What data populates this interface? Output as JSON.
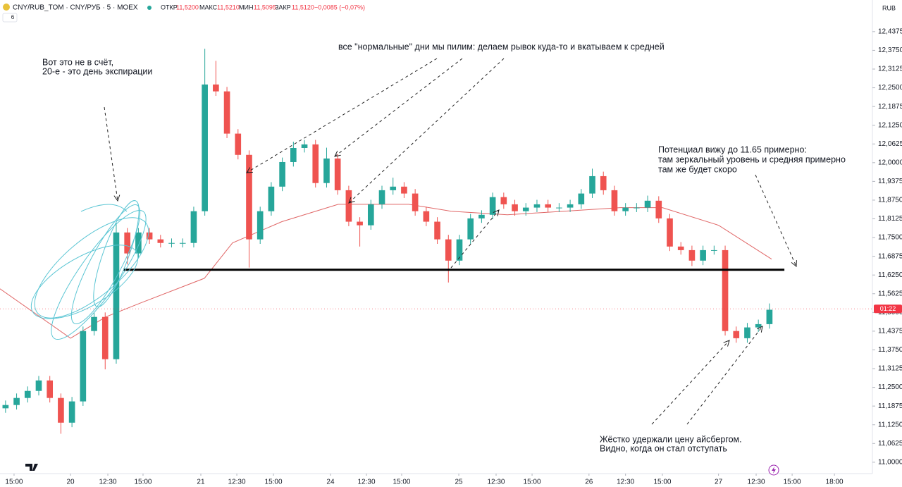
{
  "chart_data": {
    "type": "candlestick",
    "title": "CNY/RUB_TOM · CNY/РУБ · 5 · MOEX",
    "indicator_count": "6",
    "currency": "RUB",
    "legend_values": [
      {
        "label": "ОТКР",
        "value": "11,5200"
      },
      {
        "label": "МАКС",
        "value": "11,5210"
      },
      {
        "label": "МИН",
        "value": "11,5095"
      },
      {
        "label": "ЗАКР",
        "value": "11,5120"
      }
    ],
    "change": "−0,0085 (−0,07%)",
    "up_color": "#26a69a",
    "down_color": "#ef5350",
    "grid": false,
    "open": [
      11.18,
      11.191,
      11.2145,
      11.238,
      11.273,
      11.2145,
      11.132,
      11.203,
      11.438,
      11.485,
      11.344,
      11.767,
      11.697,
      11.767,
      11.744,
      11.732,
      11.732,
      11.732,
      11.838,
      12.261,
      12.238,
      12.097,
      12.026,
      11.744,
      11.838,
      11.92,
      12.002,
      12.049,
      12.061,
      11.932,
      12.014,
      11.908,
      11.803,
      11.791,
      11.861,
      11.908,
      11.92,
      11.897,
      11.838,
      11.803,
      11.744,
      11.673,
      11.744,
      11.814,
      11.826,
      11.885,
      11.861,
      11.838,
      11.85,
      11.861,
      11.85,
      11.85,
      11.861,
      11.897,
      11.955,
      11.908,
      11.838,
      11.85,
      11.85,
      11.873,
      11.814,
      11.72,
      11.708,
      11.673,
      11.708,
      11.708,
      11.438,
      11.414,
      11.45,
      11.461
    ],
    "high": [
      11.206,
      11.2295,
      11.253,
      11.288,
      11.288,
      11.2295,
      11.218,
      11.453,
      11.5,
      11.5,
      11.8,
      11.782,
      11.782,
      11.782,
      11.759,
      11.747,
      11.747,
      11.853,
      12.38,
      12.34,
      12.253,
      12.112,
      12.041,
      11.853,
      11.935,
      12.017,
      12.07,
      12.076,
      12.076,
      12.05,
      12.029,
      11.923,
      11.818,
      11.876,
      11.923,
      11.95,
      11.935,
      11.912,
      11.853,
      11.818,
      11.759,
      11.759,
      11.829,
      11.841,
      11.9,
      11.9,
      11.876,
      11.865,
      11.876,
      11.876,
      11.865,
      11.876,
      11.912,
      11.98,
      11.97,
      11.923,
      11.865,
      11.865,
      11.89,
      11.888,
      11.829,
      11.735,
      11.723,
      11.723,
      11.723,
      11.723,
      11.453,
      11.465,
      11.476,
      11.53
    ],
    "low": [
      11.165,
      11.176,
      11.1995,
      11.223,
      11.1995,
      11.095,
      11.117,
      11.188,
      11.423,
      11.31,
      11.329,
      11.66,
      11.682,
      11.729,
      11.717,
      11.717,
      11.717,
      11.717,
      11.823,
      12.223,
      12.082,
      12.011,
      11.65,
      11.729,
      11.823,
      11.905,
      11.987,
      12.034,
      11.917,
      11.917,
      11.893,
      11.788,
      11.72,
      11.776,
      11.846,
      11.893,
      11.882,
      11.823,
      11.788,
      11.729,
      11.6,
      11.658,
      11.729,
      11.799,
      11.811,
      11.846,
      11.823,
      11.823,
      11.835,
      11.835,
      11.835,
      11.835,
      11.846,
      11.882,
      11.893,
      11.823,
      11.823,
      11.835,
      11.835,
      11.799,
      11.705,
      11.693,
      11.655,
      11.658,
      11.693,
      11.423,
      11.399,
      11.399,
      11.435,
      11.446
    ],
    "close": [
      11.191,
      11.2145,
      11.238,
      11.273,
      11.2145,
      11.132,
      11.203,
      11.438,
      11.485,
      11.344,
      11.767,
      11.697,
      11.767,
      11.744,
      11.732,
      11.732,
      11.732,
      11.838,
      12.261,
      12.238,
      12.097,
      12.026,
      11.744,
      11.838,
      11.92,
      12.002,
      12.049,
      12.061,
      11.932,
      12.014,
      11.908,
      11.803,
      11.791,
      11.861,
      11.908,
      11.92,
      11.897,
      11.838,
      11.803,
      11.744,
      11.673,
      11.744,
      11.814,
      11.826,
      11.885,
      11.861,
      11.838,
      11.85,
      11.861,
      11.85,
      11.85,
      11.861,
      11.897,
      11.955,
      11.908,
      11.838,
      11.85,
      11.85,
      11.873,
      11.814,
      11.72,
      11.708,
      11.673,
      11.708,
      11.708,
      11.438,
      11.414,
      11.45,
      11.461,
      11.509
    ],
    "moving_average": {
      "color": "#e06666",
      "x": [
        -0.5,
        5.87,
        9.05,
        12.23,
        17.96,
        20.5,
        24.96,
        30.05,
        36.42,
        40.24,
        45.33,
        50.42,
        55.52,
        59.33,
        64.4,
        69.2
      ],
      "values": [
        11.579,
        11.414,
        11.485,
        11.532,
        11.614,
        11.732,
        11.803,
        11.861,
        11.861,
        11.838,
        11.826,
        11.838,
        11.85,
        11.85,
        11.791,
        11.678
      ]
    },
    "support_line": {
      "value": 11.6425,
      "x": [
        10.64,
        70.35
      ],
      "color": "#000000"
    },
    "last_price": {
      "value": 11.512,
      "label": "01:22",
      "color": "#f23645"
    },
    "xlim": [
      -0.5,
      78.3
    ],
    "ylim": [
      10.962,
      12.496
    ],
    "xticks": [
      {
        "value": 0.77,
        "label": "15:00"
      },
      {
        "value": 5.87,
        "label": "20"
      },
      {
        "value": 9.24,
        "label": "12:30"
      },
      {
        "value": 12.42,
        "label": "15:00"
      },
      {
        "value": 17.64,
        "label": "21"
      },
      {
        "value": 20.89,
        "label": "12:30"
      },
      {
        "value": 24.2,
        "label": "15:00"
      },
      {
        "value": 29.35,
        "label": "24"
      },
      {
        "value": 32.6,
        "label": "12:30"
      },
      {
        "value": 35.78,
        "label": "15:00"
      },
      {
        "value": 40.94,
        "label": "25"
      },
      {
        "value": 44.31,
        "label": "12:30"
      },
      {
        "value": 47.56,
        "label": "15:00"
      },
      {
        "value": 52.7,
        "label": "26"
      },
      {
        "value": 56.0,
        "label": "12:30"
      },
      {
        "value": 59.33,
        "label": "15:00"
      },
      {
        "value": 64.4,
        "label": "27"
      },
      {
        "value": 67.8,
        "label": "12:30"
      },
      {
        "value": 71.05,
        "label": "15:00"
      },
      {
        "value": 74.87,
        "label": "18:00"
      }
    ],
    "yticks": [
      {
        "value": 11.0,
        "label": "11,0000"
      },
      {
        "value": 11.0625,
        "label": "11,0625"
      },
      {
        "value": 11.125,
        "label": "11,1250"
      },
      {
        "value": 11.1875,
        "label": "11,1875"
      },
      {
        "value": 11.25,
        "label": "11,2500"
      },
      {
        "value": 11.3125,
        "label": "11,3125"
      },
      {
        "value": 11.375,
        "label": "11,3750"
      },
      {
        "value": 11.4375,
        "label": "11,4375"
      },
      {
        "value": 11.5,
        "label": "11,5000"
      },
      {
        "value": 11.5625,
        "label": "11,5625"
      },
      {
        "value": 11.625,
        "label": "11,6250"
      },
      {
        "value": 11.6875,
        "label": "11,6875"
      },
      {
        "value": 11.75,
        "label": "11,7500"
      },
      {
        "value": 11.8125,
        "label": "11,8125"
      },
      {
        "value": 11.875,
        "label": "11,8750"
      },
      {
        "value": 11.9375,
        "label": "11,9375"
      },
      {
        "value": 12.0,
        "label": "12,0000"
      },
      {
        "value": 12.0625,
        "label": "12,0625"
      },
      {
        "value": 12.125,
        "label": "12,1250"
      },
      {
        "value": 12.1875,
        "label": "12,1875"
      },
      {
        "value": 12.25,
        "label": "12,2500"
      },
      {
        "value": 12.3125,
        "label": "12,3125"
      },
      {
        "value": 12.375,
        "label": "12,3750"
      },
      {
        "value": 12.4375,
        "label": "12,4375"
      }
    ],
    "annotations": [
      {
        "lines": [
          "Вот это не в счёт,",
          "20-е - это день экспирации"
        ]
      },
      {
        "lines": [
          "все \"нормальные\" дни мы пилим: делаем рывок куда-то и вкатываем к средней"
        ]
      },
      {
        "lines": [
          "Потенциал вижу до 11.65 примерно:",
          "там зеркальный уровень и средняя примерно",
          "там же будет скоро"
        ]
      },
      {
        "lines": [
          "Жёстко удержали цену айсбергом.",
          "Видно, когда он стал отступать"
        ]
      }
    ]
  }
}
